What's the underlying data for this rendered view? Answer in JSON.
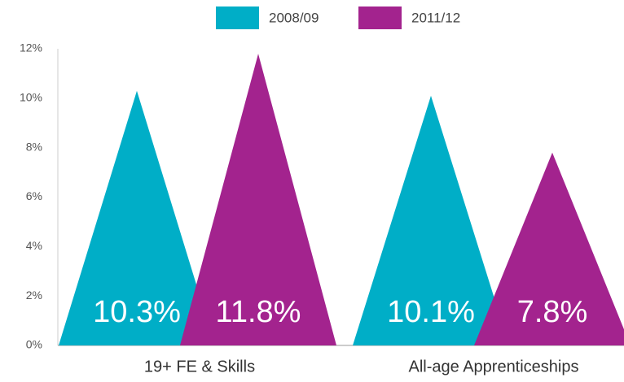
{
  "chart_data": {
    "type": "triangle-bar",
    "categories": [
      "19+ FE & Skills",
      "All-age Apprenticeships"
    ],
    "series": [
      {
        "name": "2008/09",
        "color": "#00aec7",
        "values": [
          10.3,
          10.1
        ],
        "value_labels": [
          "10.3%",
          "10.1%"
        ]
      },
      {
        "name": "2011/12",
        "color": "#a3238e",
        "values": [
          11.8,
          7.8
        ],
        "value_labels": [
          "11.8%",
          "7.8%"
        ]
      }
    ],
    "ylim": [
      0,
      12
    ],
    "yticks": [
      {
        "value": 0,
        "label": "0%"
      },
      {
        "value": 2,
        "label": "2%"
      },
      {
        "value": 4,
        "label": "4%"
      },
      {
        "value": 6,
        "label": "6%"
      },
      {
        "value": 8,
        "label": "8%"
      },
      {
        "value": 10,
        "label": "10%"
      },
      {
        "value": 12,
        "label": "12%"
      }
    ],
    "legend": "top"
  }
}
